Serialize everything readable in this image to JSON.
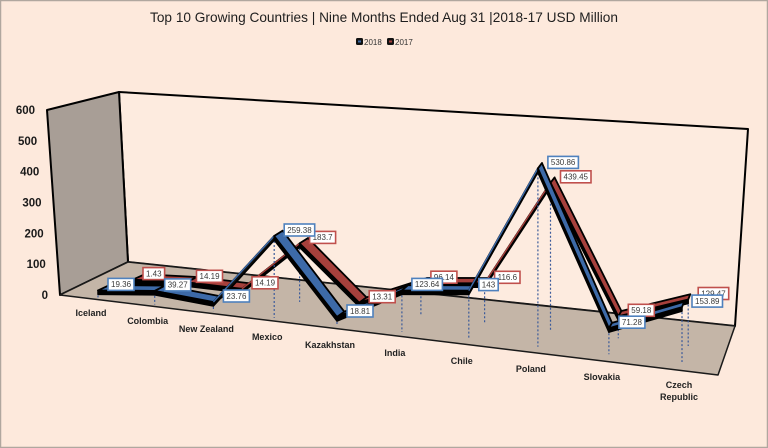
{
  "chart_data": {
    "type": "line",
    "variant": "3d-line",
    "title": "Top 10 Growing Countries | Nine Months Ended Aug 31 |2018-17 USD Million",
    "xlabel": "",
    "ylabel": "",
    "categories": [
      "Iceland",
      "Colombia",
      "New Zealand",
      "Mexico",
      "Kazakhstan",
      "India",
      "Chile",
      "Poland",
      "Slovakia",
      "Czech Republic"
    ],
    "series": [
      {
        "name": "2018",
        "color": "#3d6aa8",
        "label_border_color": "#4f81bd",
        "values": [
          19.36,
          39.27,
          23.76,
          259.38,
          18.81,
          123.64,
          143,
          530.86,
          71.28,
          153.89
        ]
      },
      {
        "name": "2017",
        "color": "#a6403c",
        "label_border_color": "#c0504d",
        "values": [
          1.43,
          14.19,
          14.19,
          183.7,
          13.31,
          96.14,
          116.6,
          439.45,
          59.18,
          129.47
        ]
      }
    ],
    "ylim": [
      0,
      600
    ],
    "yticks": [
      0,
      100,
      200,
      300,
      400,
      500,
      600
    ],
    "grid": false,
    "data_labels": true,
    "drop_lines": true,
    "legend": {
      "position": "top-center",
      "entries": [
        "2018",
        "2017"
      ]
    }
  },
  "theme": {
    "background": "#fde9dc",
    "side_wall": "#a89e96",
    "back_wall": "#fdebdf",
    "floor": "#c4b5a7",
    "drop_line_color": "#3b5b9b",
    "border": "#b0a79f"
  }
}
